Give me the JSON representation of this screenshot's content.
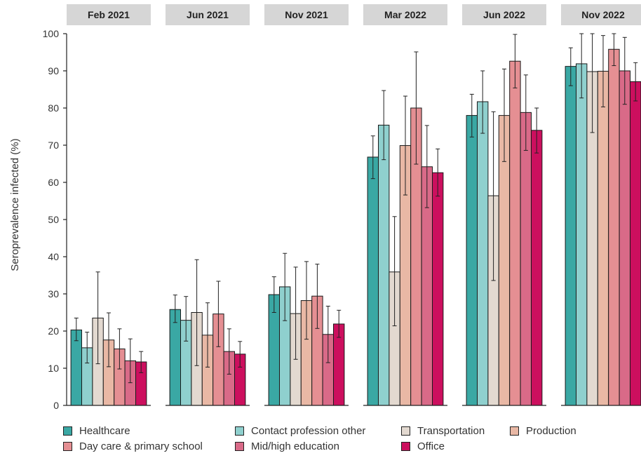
{
  "chart_data": {
    "type": "bar",
    "ylabel": "Seroprevalence infected (%)",
    "xlabel": "",
    "ylim": [
      0,
      100
    ],
    "yticks": [
      0,
      10,
      20,
      30,
      40,
      50,
      60,
      70,
      80,
      90,
      100
    ],
    "facets": [
      "Feb 2021",
      "Jun 2021",
      "Nov 2021",
      "Mar 2022",
      "Jun 2022",
      "Nov 2022"
    ],
    "legend_position": "bottom",
    "series": [
      {
        "name": "Healthcare",
        "color": "#3aa8a4",
        "values": [
          20.3,
          25.8,
          29.8,
          66.8,
          78.0,
          91.2
        ],
        "ci_low": [
          17.4,
          22.3,
          25.0,
          61.0,
          72.2,
          86.0
        ],
        "ci_high": [
          23.5,
          29.7,
          34.6,
          72.5,
          83.7,
          96.2
        ]
      },
      {
        "name": "Contact profession other",
        "color": "#8fd0ce",
        "values": [
          15.5,
          22.9,
          31.9,
          75.4,
          81.7,
          91.9
        ],
        "ci_low": [
          11.4,
          17.3,
          22.8,
          66.1,
          73.2,
          82.7
        ],
        "ci_high": [
          19.7,
          29.3,
          40.9,
          84.7,
          90.0,
          100.0
        ]
      },
      {
        "name": "Transportation",
        "color": "#e3d9d0",
        "values": [
          23.5,
          25.0,
          24.7,
          35.9,
          56.4,
          89.8
        ],
        "ci_low": [
          11.2,
          10.7,
          12.4,
          21.4,
          33.6,
          73.4
        ],
        "ci_high": [
          35.9,
          39.2,
          37.2,
          50.8,
          79.0,
          100.0
        ]
      },
      {
        "name": "Production",
        "color": "#e9b8a5",
        "values": [
          17.6,
          18.9,
          28.2,
          69.9,
          78.0,
          89.9
        ],
        "ci_low": [
          10.4,
          10.3,
          17.8,
          56.6,
          65.6,
          80.3
        ],
        "ci_high": [
          24.9,
          27.6,
          38.7,
          83.2,
          90.5,
          99.5
        ]
      },
      {
        "name": "Day care & primary school",
        "color": "#e58f93",
        "values": [
          15.2,
          24.6,
          29.4,
          80.0,
          92.6,
          95.8
        ],
        "ci_low": [
          9.8,
          15.8,
          20.7,
          64.9,
          85.4,
          91.4
        ],
        "ci_high": [
          20.6,
          33.4,
          38.0,
          95.1,
          99.8,
          100.0
        ]
      },
      {
        "name": "Mid/high education",
        "color": "#d96a88",
        "values": [
          12.0,
          14.5,
          19.1,
          64.2,
          78.8,
          90.0
        ],
        "ci_low": [
          6.1,
          8.4,
          11.5,
          53.2,
          68.6,
          81.0
        ],
        "ci_high": [
          17.9,
          20.6,
          26.7,
          75.3,
          88.9,
          99.0
        ]
      },
      {
        "name": "Office",
        "color": "#cc0f5e",
        "values": [
          11.7,
          13.8,
          21.9,
          62.6,
          74.0,
          87.1
        ],
        "ci_low": [
          8.8,
          10.3,
          18.3,
          56.3,
          67.9,
          81.9
        ],
        "ci_high": [
          14.5,
          17.2,
          25.6,
          69.0,
          80.0,
          92.2
        ]
      }
    ]
  }
}
